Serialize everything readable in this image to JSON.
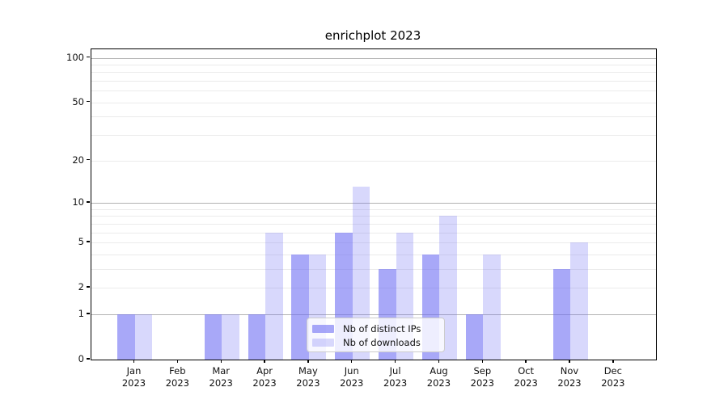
{
  "chart_data": {
    "type": "bar",
    "title": "enrichplot 2023",
    "year_label": "2023",
    "categories": [
      "Jan",
      "Feb",
      "Mar",
      "Apr",
      "May",
      "Jun",
      "Jul",
      "Aug",
      "Sep",
      "Oct",
      "Nov",
      "Dec"
    ],
    "series": [
      {
        "name": "Nb of distinct IPs",
        "color": "rgba(110,110,243,0.60)",
        "values": [
          1,
          0,
          1,
          1,
          4,
          6,
          3,
          4,
          1,
          0,
          3,
          0
        ]
      },
      {
        "name": "Nb of downloads",
        "color": "rgba(110,110,243,0.27)",
        "values": [
          1,
          0,
          1,
          6,
          4,
          13,
          6,
          8,
          4,
          0,
          5,
          0
        ]
      }
    ],
    "y_ticks": [
      0,
      1,
      2,
      5,
      10,
      20,
      50,
      100
    ],
    "y_gridlines_major": [
      1,
      10,
      100
    ],
    "y_gridlines_minor": [
      2,
      3,
      4,
      5,
      6,
      7,
      8,
      9,
      20,
      30,
      40,
      50,
      60,
      70,
      80,
      90
    ],
    "y_scale": "log1p",
    "ylim": [
      0,
      114
    ],
    "grid": "horizontal-only",
    "legend_position": "inside-bottom-center"
  },
  "colors": {
    "grid_major": "#b2b2b2",
    "grid_minor": "#ebebeb",
    "spine": "#000000",
    "text": "#111111",
    "legend_border": "#cccccc",
    "legend_bg": "rgba(255,255,255,0.8)"
  }
}
